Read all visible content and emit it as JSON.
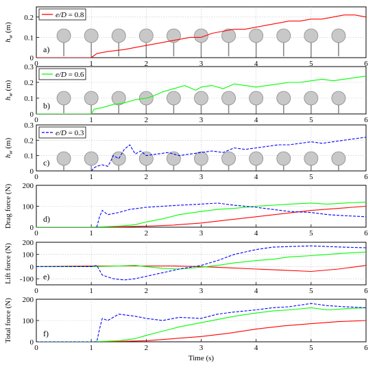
{
  "chart_data": [
    {
      "id": "a",
      "type": "line",
      "panel_label": "a)",
      "ylabel_main": "h",
      "ylabel_sub": "w",
      "ylabel_unit": " (m)",
      "xlim": [
        0,
        6
      ],
      "ylim": [
        0,
        0.25
      ],
      "yticks": [
        0,
        0.1,
        0.2
      ],
      "ytick_labels": [
        "0",
        "0.1",
        "0.2"
      ],
      "xticks": [
        0,
        1,
        2,
        3,
        4,
        5,
        6
      ],
      "xtick_labels": [
        "0",
        "1",
        "2",
        "3",
        "4",
        "5",
        "6"
      ],
      "legend": {
        "label": "e/D = 0.8",
        "color": "#ff0000",
        "style": "solid",
        "position": "top-left"
      },
      "cylinders_x": [
        0.5,
        1.0,
        1.5,
        2.0,
        2.5,
        3.0,
        3.5,
        4.0,
        4.5,
        5.0,
        5.5
      ],
      "series": [
        {
          "name": "e/D = 0.8",
          "color": "#ff0000",
          "style": "solid",
          "x": [
            0,
            1.0,
            1.05,
            1.1,
            1.3,
            1.6,
            1.8,
            2.0,
            2.2,
            2.4,
            2.6,
            2.8,
            3.0,
            3.2,
            3.4,
            3.6,
            3.8,
            4.0,
            4.2,
            4.4,
            4.6,
            4.8,
            5.0,
            5.2,
            5.4,
            5.6,
            5.8,
            6.0
          ],
          "y": [
            0,
            0,
            0.01,
            0.02,
            0.03,
            0.04,
            0.05,
            0.06,
            0.07,
            0.08,
            0.09,
            0.1,
            0.1,
            0.12,
            0.13,
            0.14,
            0.14,
            0.15,
            0.16,
            0.17,
            0.18,
            0.18,
            0.19,
            0.19,
            0.2,
            0.21,
            0.21,
            0.2
          ]
        }
      ]
    },
    {
      "id": "b",
      "type": "line",
      "panel_label": "b)",
      "ylabel_main": "h",
      "ylabel_sub": "w",
      "ylabel_unit": " (m)",
      "xlim": [
        0,
        6
      ],
      "ylim": [
        0,
        0.3
      ],
      "yticks": [
        0,
        0.1,
        0.2,
        0.3
      ],
      "ytick_labels": [
        "0",
        "0.1",
        "0.2",
        "0.3"
      ],
      "xticks": [
        0,
        1,
        2,
        3,
        4,
        5,
        6
      ],
      "xtick_labels": [
        "0",
        "1",
        "2",
        "3",
        "4",
        "5",
        "6"
      ],
      "legend": {
        "label": "e/D = 0.6",
        "color": "#00ff00",
        "style": "solid",
        "position": "top-left"
      },
      "cylinders_x": [
        0.5,
        1.0,
        1.5,
        2.0,
        2.5,
        3.0,
        3.5,
        4.0,
        4.5,
        5.0,
        5.5
      ],
      "series": [
        {
          "name": "e/D = 0.6",
          "color": "#00ff00",
          "style": "solid",
          "x": [
            0,
            1.0,
            1.05,
            1.2,
            1.4,
            1.6,
            1.8,
            2.0,
            2.1,
            2.3,
            2.5,
            2.7,
            2.9,
            3.0,
            3.2,
            3.4,
            3.6,
            3.8,
            4.0,
            4.2,
            4.4,
            4.6,
            4.8,
            5.0,
            5.2,
            5.4,
            5.6,
            5.8,
            6.0
          ],
          "y": [
            0,
            0,
            0.03,
            0.04,
            0.06,
            0.07,
            0.09,
            0.1,
            0.11,
            0.14,
            0.16,
            0.18,
            0.15,
            0.17,
            0.18,
            0.16,
            0.19,
            0.18,
            0.17,
            0.18,
            0.19,
            0.2,
            0.2,
            0.21,
            0.22,
            0.21,
            0.22,
            0.23,
            0.24
          ]
        }
      ]
    },
    {
      "id": "c",
      "type": "line",
      "panel_label": "c)",
      "ylabel_main": "h",
      "ylabel_sub": "w",
      "ylabel_unit": " (m)",
      "xlim": [
        0,
        6
      ],
      "ylim": [
        0,
        0.3
      ],
      "yticks": [
        0,
        0.1,
        0.2,
        0.3
      ],
      "ytick_labels": [
        "0",
        "0.1",
        "0.2",
        "0.3"
      ],
      "xticks": [
        0,
        1,
        2,
        3,
        4,
        5,
        6
      ],
      "xtick_labels": [
        "0",
        "1",
        "2",
        "3",
        "4",
        "5",
        "6"
      ],
      "legend": {
        "label": "e/D = 0.3",
        "color": "#0000ff",
        "style": "dashed",
        "position": "top-left"
      },
      "cylinders_x": [
        0.5,
        1.0,
        1.5,
        2.0,
        2.5,
        3.0,
        3.5,
        4.0,
        4.5,
        5.0,
        5.5
      ],
      "series": [
        {
          "name": "e/D = 0.3",
          "color": "#0000ff",
          "style": "dashed",
          "x": [
            1.0,
            1.05,
            1.1,
            1.2,
            1.3,
            1.35,
            1.4,
            1.5,
            1.6,
            1.7,
            1.8,
            1.9,
            2.0,
            2.2,
            2.4,
            2.6,
            2.8,
            3.0,
            3.2,
            3.4,
            3.6,
            3.8,
            4.0,
            4.2,
            4.4,
            4.6,
            4.8,
            5.0,
            5.2,
            5.4,
            5.6,
            5.8,
            6.0
          ],
          "y": [
            0.0,
            0.02,
            0.03,
            0.04,
            0.03,
            0.06,
            0.1,
            0.08,
            0.14,
            0.17,
            0.11,
            0.13,
            0.1,
            0.11,
            0.12,
            0.1,
            0.11,
            0.12,
            0.13,
            0.12,
            0.15,
            0.14,
            0.15,
            0.16,
            0.17,
            0.17,
            0.18,
            0.19,
            0.18,
            0.19,
            0.2,
            0.21,
            0.22
          ]
        }
      ]
    },
    {
      "id": "d",
      "type": "line",
      "panel_label": "d)",
      "ylabel": "Drag force (N)",
      "xlim": [
        0,
        6
      ],
      "ylim": [
        0,
        200
      ],
      "yticks": [
        0,
        100,
        200
      ],
      "ytick_labels": [
        "0",
        "100",
        "200"
      ],
      "xticks": [
        0,
        1,
        2,
        3,
        4,
        5,
        6
      ],
      "xtick_labels": [
        "0",
        "1",
        "2",
        "3",
        "4",
        "5",
        "6"
      ],
      "series": [
        {
          "name": "e/D = 0.8",
          "color": "#ff0000",
          "style": "solid",
          "x": [
            0,
            1.0,
            1.5,
            2.0,
            2.5,
            3.0,
            3.5,
            4.0,
            4.5,
            5.0,
            5.5,
            6.0
          ],
          "y": [
            0,
            0,
            2,
            5,
            10,
            20,
            35,
            50,
            65,
            80,
            90,
            100
          ]
        },
        {
          "name": "e/D = 0.6",
          "color": "#00ff00",
          "style": "solid",
          "x": [
            0,
            1.0,
            1.5,
            1.8,
            2.0,
            2.3,
            2.6,
            3.0,
            3.3,
            3.6,
            4.0,
            4.3,
            4.6,
            5.0,
            5.3,
            5.6,
            6.0
          ],
          "y": [
            0,
            0,
            5,
            12,
            25,
            40,
            60,
            75,
            85,
            90,
            100,
            105,
            110,
            115,
            110,
            115,
            120
          ]
        },
        {
          "name": "e/D = 0.3",
          "color": "#0000ff",
          "style": "dashed",
          "x": [
            1.1,
            1.15,
            1.2,
            1.3,
            1.5,
            1.7,
            2.0,
            2.3,
            2.6,
            3.0,
            3.3,
            3.6,
            4.0,
            4.3,
            4.6,
            5.0,
            5.3,
            5.6,
            6.0
          ],
          "y": [
            0,
            50,
            80,
            60,
            70,
            85,
            95,
            100,
            105,
            110,
            115,
            105,
            95,
            85,
            75,
            70,
            60,
            55,
            50
          ]
        }
      ]
    },
    {
      "id": "e",
      "type": "line",
      "panel_label": "e)",
      "ylabel": "Lift force (N)",
      "xlim": [
        0,
        6
      ],
      "ylim": [
        -150,
        200
      ],
      "yticks": [
        -100,
        0,
        100,
        200
      ],
      "ytick_labels": [
        "-100",
        "0",
        "100",
        "200"
      ],
      "xticks": [
        0,
        1,
        2,
        3,
        4,
        5,
        6
      ],
      "xtick_labels": [
        "0",
        "1",
        "2",
        "3",
        "4",
        "5",
        "6"
      ],
      "series": [
        {
          "name": "e/D = 0.8",
          "color": "#ff0000",
          "style": "solid",
          "x": [
            0,
            1.0,
            1.5,
            2.0,
            2.5,
            3.0,
            3.5,
            4.0,
            4.5,
            5.0,
            5.5,
            6.0
          ],
          "y": [
            0,
            5,
            5,
            5,
            5,
            0,
            -10,
            -20,
            -30,
            -40,
            -20,
            10
          ]
        },
        {
          "name": "e/D = 0.6",
          "color": "#00ff00",
          "style": "solid",
          "x": [
            0,
            1.0,
            1.5,
            1.8,
            2.0,
            2.3,
            2.6,
            3.0,
            3.3,
            3.6,
            4.0,
            4.3,
            4.6,
            5.0,
            5.3,
            5.6,
            6.0
          ],
          "y": [
            0,
            0,
            5,
            10,
            0,
            -15,
            -20,
            -5,
            10,
            30,
            50,
            60,
            80,
            90,
            100,
            110,
            120
          ]
        },
        {
          "name": "e/D = 0.3",
          "color": "#0000ff",
          "style": "dashed",
          "x": [
            0,
            1.0,
            1.1,
            1.2,
            1.4,
            1.6,
            1.8,
            2.0,
            2.3,
            2.6,
            3.0,
            3.3,
            3.6,
            4.0,
            4.3,
            4.6,
            5.0,
            5.3,
            5.6,
            6.0
          ],
          "y": [
            0,
            0,
            10,
            -70,
            -100,
            -110,
            -100,
            -80,
            -50,
            -20,
            10,
            50,
            100,
            140,
            160,
            165,
            170,
            165,
            160,
            155
          ]
        }
      ]
    },
    {
      "id": "f",
      "type": "line",
      "panel_label": "f)",
      "ylabel": "Total force (N)",
      "xlabel": "Time (s)",
      "xlim": [
        0,
        6
      ],
      "ylim": [
        0,
        200
      ],
      "yticks": [
        0,
        100,
        200
      ],
      "ytick_labels": [
        "0",
        "100",
        "200"
      ],
      "xticks": [
        0,
        1,
        2,
        3,
        4,
        5,
        6
      ],
      "xtick_labels": [
        "0",
        "1",
        "2",
        "3",
        "4",
        "5",
        "6"
      ],
      "series": [
        {
          "name": "e/D = 0.8",
          "color": "#ff0000",
          "style": "solid",
          "x": [
            0,
            1.0,
            1.5,
            2.0,
            2.5,
            3.0,
            3.5,
            4.0,
            4.5,
            5.0,
            5.5,
            6.0
          ],
          "y": [
            0,
            0,
            2,
            5,
            15,
            25,
            40,
            60,
            75,
            85,
            95,
            100
          ]
        },
        {
          "name": "e/D = 0.6",
          "color": "#00ff00",
          "style": "solid",
          "x": [
            0,
            1.0,
            1.5,
            1.8,
            2.0,
            2.3,
            2.6,
            3.0,
            3.3,
            3.6,
            4.0,
            4.3,
            4.6,
            5.0,
            5.3,
            5.6,
            6.0
          ],
          "y": [
            0,
            0,
            5,
            15,
            30,
            50,
            70,
            90,
            105,
            120,
            135,
            145,
            150,
            160,
            150,
            155,
            160
          ]
        },
        {
          "name": "e/D = 0.3",
          "color": "#0000ff",
          "style": "dashed",
          "x": [
            0,
            1.1,
            1.15,
            1.2,
            1.3,
            1.5,
            1.8,
            2.0,
            2.3,
            2.6,
            3.0,
            3.3,
            3.6,
            4.0,
            4.3,
            4.6,
            5.0,
            5.3,
            5.6,
            6.0
          ],
          "y": [
            0,
            0,
            60,
            110,
            100,
            130,
            120,
            110,
            100,
            115,
            110,
            130,
            140,
            150,
            160,
            165,
            180,
            170,
            165,
            160
          ]
        }
      ]
    }
  ]
}
